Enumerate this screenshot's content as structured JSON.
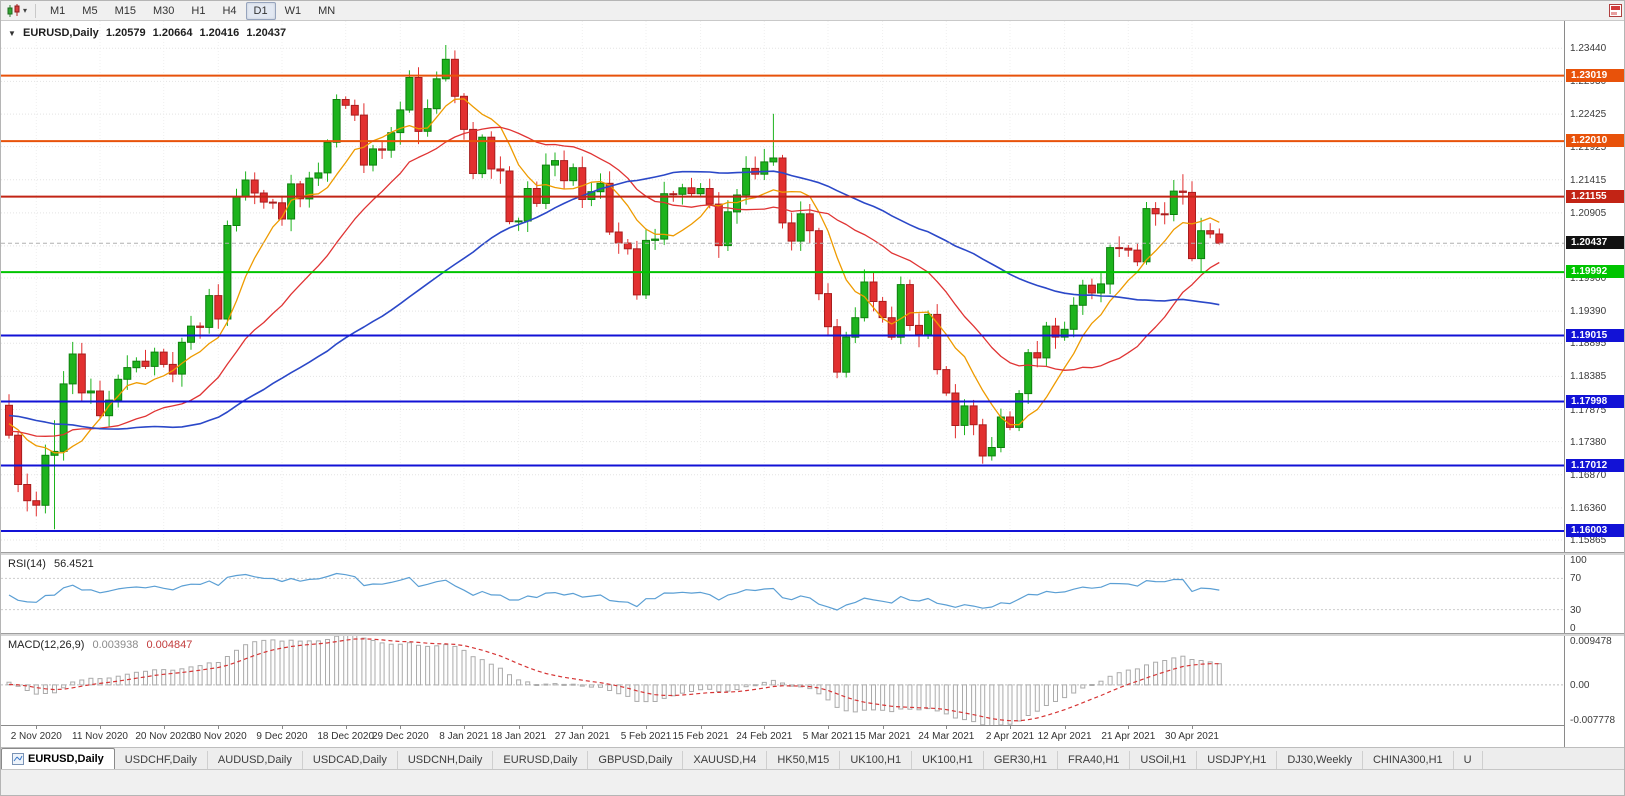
{
  "toolbar": {
    "timeframes": [
      "M1",
      "M5",
      "M15",
      "M30",
      "H1",
      "H4",
      "D1",
      "W1",
      "MN"
    ],
    "active_timeframe": "D1"
  },
  "chart": {
    "title": "EURUSD,Daily",
    "ohlc": {
      "open": "1.20579",
      "high": "1.20664",
      "low": "1.20416",
      "close": "1.20437"
    },
    "price_axis_labels": [
      "1.23440",
      "1.22930",
      "1.22425",
      "1.21925",
      "1.21415",
      "1.20905",
      "1.20395",
      "1.19900",
      "1.19390",
      "1.18895",
      "1.18385",
      "1.17875",
      "1.17380",
      "1.16870",
      "1.16360",
      "1.15865"
    ],
    "colors": {
      "bull": "#1db31d",
      "bull_border": "#0e800e",
      "bear": "#e23030",
      "bear_border": "#a81d1d"
    },
    "hlines": [
      {
        "price": 1.23019,
        "label": "1.23019",
        "color": "#e8520a"
      },
      {
        "price": 1.2201,
        "label": "1.22010",
        "color": "#e8520a"
      },
      {
        "price": 1.21155,
        "label": "1.21155",
        "color": "#c22415"
      },
      {
        "price": 1.19992,
        "label": "1.19992",
        "color": "#00c400"
      },
      {
        "price": 1.19015,
        "label": "1.19015",
        "color": "#1212d6"
      },
      {
        "price": 1.17998,
        "label": "1.17998",
        "color": "#1212d6"
      },
      {
        "price": 1.17012,
        "label": "1.17012",
        "color": "#1212d6"
      },
      {
        "price": 1.16003,
        "label": "1.16003",
        "color": "#1212d6"
      }
    ],
    "current_price": {
      "price": 1.20437,
      "label": "1.20437",
      "color": "#111111"
    },
    "moving_averages": [
      {
        "period": 8,
        "color": "#ee9b00",
        "width": 1.3
      },
      {
        "period": 21,
        "color": "#e03434",
        "width": 1.3
      },
      {
        "period": 50,
        "color": "#2b48c8",
        "width": 1.6
      }
    ],
    "candles": {
      "first_open": 1.1794,
      "pre_closes": [
        1.1772,
        1.1738,
        1.1771,
        1.1785,
        1.1812,
        1.1761,
        1.1737,
        1.1791,
        1.1814,
        1.184,
        1.1867,
        1.1853,
        1.1921,
        1.193,
        1.1916,
        1.1853,
        1.182,
        1.1843,
        1.1815,
        1.1778,
        1.181,
        1.1846,
        1.1873,
        1.1885,
        1.1862,
        1.1793,
        1.1787,
        1.171,
        1.1686,
        1.1664,
        1.1631,
        1.1677,
        1.1719,
        1.1722,
        1.1637,
        1.1682,
        1.1714,
        1.1718,
        1.1723,
        1.1712,
        1.1783,
        1.1716,
        1.1786,
        1.181,
        1.176,
        1.1762,
        1.1794,
        1.1746,
        1.1747,
        1.177,
        1.1714,
        1.174,
        1.1786,
        1.1826,
        1.1794
      ],
      "closes": [
        1.1748,
        1.1672,
        1.1647,
        1.164,
        1.1717,
        1.1723,
        1.1827,
        1.1873,
        1.1813,
        1.1816,
        1.1778,
        1.1802,
        1.1834,
        1.1852,
        1.1862,
        1.1854,
        1.1876,
        1.1857,
        1.1842,
        1.1891,
        1.1916,
        1.1914,
        1.1963,
        1.1927,
        1.2071,
        1.2115,
        1.2141,
        1.2121,
        1.2107,
        1.2106,
        1.2081,
        1.2135,
        1.2112,
        1.2144,
        1.2152,
        1.2199,
        1.2265,
        1.2256,
        1.2241,
        1.2164,
        1.2189,
        1.2187,
        1.2214,
        1.2249,
        1.2299,
        1.2216,
        1.2251,
        1.2297,
        1.2327,
        1.227,
        1.2219,
        1.2151,
        1.2207,
        1.2158,
        1.2155,
        1.2077,
        1.2078,
        1.2128,
        1.2105,
        1.2164,
        1.2171,
        1.214,
        1.216,
        1.2111,
        1.2123,
        1.2136,
        1.2061,
        1.2044,
        1.2035,
        1.1964,
        1.2048,
        1.205,
        1.212,
        1.2119,
        1.2129,
        1.212,
        1.2128,
        1.2104,
        1.204,
        1.2092,
        1.2118,
        1.2159,
        1.215,
        1.2169,
        1.2175,
        1.2075,
        1.2047,
        1.2089,
        1.2063,
        1.1966,
        1.1915,
        1.1845,
        1.1899,
        1.1929,
        1.1984,
        1.1954,
        1.1929,
        1.1899,
        1.198,
        1.1917,
        1.1903,
        1.1934,
        1.1849,
        1.1813,
        1.1763,
        1.1793,
        1.1764,
        1.1716,
        1.1729,
        1.1776,
        1.176,
        1.1812,
        1.1875,
        1.1867,
        1.1916,
        1.1899,
        1.1911,
        1.1948,
        1.1979,
        1.1967,
        1.1981,
        1.2037,
        1.2036,
        1.2033,
        1.2015,
        1.2097,
        1.2089,
        1.2088,
        1.2124,
        1.2122,
        1.202,
        1.2063,
        1.20579,
        1.20437
      ],
      "overrides": {
        "3": {
          "low": 1.1623
        },
        "5": {
          "high": 1.1771,
          "low": 1.1603
        },
        "36": {
          "high": 1.2273
        },
        "44": {
          "high": 1.231
        },
        "48": {
          "high": 1.2349
        },
        "84": {
          "high": 1.2243
        },
        "107": {
          "low": 1.1704
        },
        "129": {
          "high": 1.215
        },
        "133": {
          "high": 1.20664,
          "low": 1.20416
        }
      }
    }
  },
  "rsi": {
    "name": "RSI(14)",
    "value": "56.4521",
    "levels": [
      "100",
      "70",
      "30",
      "0"
    ],
    "color": "#5b9fd4"
  },
  "macd": {
    "name": "MACD(12,26,9)",
    "main_value": "0.003938",
    "signal_value": "0.004847",
    "axis_labels": [
      "0.009478",
      "0.00",
      "-0.007778"
    ],
    "histogram_color": "#ababab",
    "signal_color": "#d63434"
  },
  "dates": [
    {
      "label": "2 Nov 2020",
      "index": 3
    },
    {
      "label": "11 Nov 2020",
      "index": 10
    },
    {
      "label": "20 Nov 2020",
      "index": 17
    },
    {
      "label": "30 Nov 2020",
      "index": 23
    },
    {
      "label": "9 Dec 2020",
      "index": 30
    },
    {
      "label": "18 Dec 2020",
      "index": 37
    },
    {
      "label": "29 Dec 2020",
      "index": 43
    },
    {
      "label": "8 Jan 2021",
      "index": 50
    },
    {
      "label": "18 Jan 2021",
      "index": 56
    },
    {
      "label": "27 Jan 2021",
      "index": 63
    },
    {
      "label": "5 Feb 2021",
      "index": 70
    },
    {
      "label": "15 Feb 2021",
      "index": 76
    },
    {
      "label": "24 Feb 2021",
      "index": 83
    },
    {
      "label": "5 Mar 2021",
      "index": 90
    },
    {
      "label": "15 Mar 2021",
      "index": 96
    },
    {
      "label": "24 Mar 2021",
      "index": 103
    },
    {
      "label": "2 Apr 2021",
      "index": 110
    },
    {
      "label": "12 Apr 2021",
      "index": 116
    },
    {
      "label": "21 Apr 2021",
      "index": 123
    },
    {
      "label": "30 Apr 2021",
      "index": 130
    }
  ],
  "tabs": [
    {
      "label": "EURUSD,Daily",
      "active": true
    },
    {
      "label": "USDCHF,Daily"
    },
    {
      "label": "AUDUSD,Daily"
    },
    {
      "label": "USDCAD,Daily"
    },
    {
      "label": "USDCNH,Daily"
    },
    {
      "label": "EURUSD,Daily"
    },
    {
      "label": "GBPUSD,Daily"
    },
    {
      "label": "XAUUSD,H4"
    },
    {
      "label": "HK50,M15"
    },
    {
      "label": "UK100,H1"
    },
    {
      "label": "UK100,H1"
    },
    {
      "label": "GER30,H1"
    },
    {
      "label": "FRA40,H1"
    },
    {
      "label": "USOil,H1"
    },
    {
      "label": "USDJPY,H1"
    },
    {
      "label": "DJ30,Weekly"
    },
    {
      "label": "CHINA300,H1"
    },
    {
      "label": "U"
    }
  ]
}
